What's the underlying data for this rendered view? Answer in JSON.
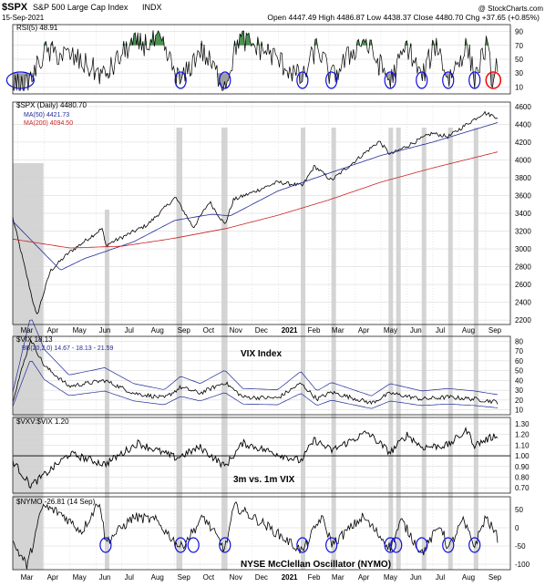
{
  "header": {
    "symbol": "$SPX",
    "name": "S&P 500 Large Cap Index",
    "exchange": "INDX",
    "date": "15-Sep-2021",
    "quote": "Open 4447.49  High 4486.87  Low 4438.37  Close 4480.70  Chg +37.65 (+0.85%)",
    "watermark": "@ StockCharts.com"
  },
  "colors": {
    "price": "#000000",
    "ma50": "#1f2a99",
    "ma200": "#cc2222",
    "overbought_fill": "#2e7d32",
    "oversold_fill": "#8d8d8d",
    "highlight_band": "#b0b0b0",
    "marker_blue": "#1010dd",
    "marker_red": "#ee1111",
    "grid": "#d0d0d0"
  },
  "xaxis": {
    "months": [
      "Mar",
      "Apr",
      "May",
      "Jun",
      "Jul",
      "Aug",
      "Sep",
      "Oct",
      "Nov",
      "Dec",
      "2021",
      "Feb",
      "Mar",
      "Apr",
      "May",
      "Jun",
      "Jul",
      "Aug",
      "Sep"
    ]
  },
  "panels": {
    "rsi": {
      "label": "RSI(5) 48.91",
      "ticks": [
        "90",
        "70",
        "50",
        "30",
        "10"
      ],
      "tick_values": [
        90,
        70,
        50,
        30,
        10
      ],
      "range": [
        0,
        100
      ]
    },
    "price": {
      "label": "$SPX (Daily) 4480.70",
      "ma50_label": "MA(50) 4421.73",
      "ma200_label": "MA(200) 4094.50",
      "ticks": [
        "4600",
        "4400",
        "4200",
        "4000",
        "3800",
        "3600",
        "3400",
        "3200",
        "3000",
        "2800",
        "2600",
        "2400",
        "2200"
      ],
      "tick_values": [
        4600,
        4400,
        4200,
        4000,
        3800,
        3600,
        3400,
        3200,
        3000,
        2800,
        2600,
        2400,
        2200
      ],
      "range": [
        2150,
        4650
      ]
    },
    "vix": {
      "label": "$VIX 18.13",
      "bb_label": "BB(20,2.0) 14.67 - 18.13 - 21.59",
      "title": "VIX Index",
      "ticks": [
        "80",
        "70",
        "60",
        "50",
        "40",
        "30",
        "20",
        "10"
      ],
      "tick_values": [
        80,
        70,
        60,
        50,
        40,
        30,
        20,
        10
      ],
      "range": [
        5,
        85
      ]
    },
    "ratio": {
      "label": "$VXV:$VIX 1.20",
      "title": "3m vs. 1m VIX",
      "ticks": [
        "1.30",
        "1.20",
        "1.10",
        "1.00",
        "0.90",
        "0.80",
        "0.70"
      ],
      "tick_values": [
        1.3,
        1.2,
        1.1,
        1.0,
        0.9,
        0.8,
        0.7
      ],
      "range": [
        0.65,
        1.36
      ]
    },
    "nymo": {
      "label": "$NYMO -26.81 (14 Sep)",
      "title": "NYSE McClellan Oscillator (NYMO)",
      "ticks": [
        "50",
        "0",
        "-50",
        "-100"
      ],
      "tick_values": [
        50,
        0,
        -50,
        -100
      ],
      "range": [
        -115,
        85
      ]
    }
  },
  "chart_data": {
    "type": "line",
    "title": "S&P 500 Large Cap Index",
    "x": [
      "2020-03",
      "2020-04",
      "2020-05",
      "2020-06",
      "2020-07",
      "2020-08",
      "2020-09",
      "2020-10",
      "2020-11",
      "2020-12",
      "2021-01",
      "2021-02",
      "2021-03",
      "2021-04",
      "2021-05",
      "2021-06",
      "2021-07",
      "2021-08",
      "2021-09"
    ],
    "series": [
      {
        "name": "$SPX (Daily)",
        "values": [
          3300,
          2500,
          2900,
          3100,
          3150,
          3350,
          3500,
          3400,
          3300,
          3650,
          3750,
          3900,
          3850,
          4050,
          4150,
          4200,
          4350,
          4400,
          4480
        ]
      },
      {
        "name": "MA(50)",
        "values": [
          3150,
          2900,
          2700,
          2950,
          3100,
          3200,
          3350,
          3380,
          3350,
          3500,
          3650,
          3800,
          3850,
          3950,
          4050,
          4150,
          4250,
          4330,
          4421
        ]
      },
      {
        "name": "MA(200)",
        "values": [
          3050,
          3020,
          3000,
          3000,
          3030,
          3080,
          3120,
          3150,
          3200,
          3250,
          3350,
          3450,
          3530,
          3630,
          3730,
          3830,
          3920,
          4000,
          4094
        ]
      },
      {
        "name": "$VIX",
        "values": [
          55,
          45,
          32,
          30,
          28,
          24,
          27,
          28,
          34,
          22,
          24,
          25,
          21,
          18,
          18,
          17,
          18,
          17,
          18.13
        ]
      },
      {
        "name": "$VXV:$VIX",
        "values": [
          0.78,
          0.85,
          0.95,
          1.05,
          1.1,
          1.15,
          1.05,
          1.05,
          0.95,
          1.15,
          1.15,
          1.05,
          1.15,
          1.2,
          1.15,
          1.2,
          1.15,
          1.2,
          1.2
        ]
      },
      {
        "name": "$NYMO",
        "values": [
          -80,
          40,
          30,
          20,
          10,
          20,
          -40,
          -30,
          -50,
          40,
          20,
          -30,
          -20,
          10,
          -20,
          -40,
          -20,
          10,
          -26.81
        ]
      },
      {
        "name": "RSI(5)",
        "values": [
          15,
          70,
          55,
          55,
          60,
          60,
          25,
          45,
          20,
          65,
          60,
          25,
          30,
          70,
          25,
          65,
          25,
          60,
          48.91
        ]
      }
    ],
    "highlight_periods": [
      {
        "from": "2020-02-24",
        "to": "2020-03-31"
      },
      {
        "from": "2020-06-11",
        "to": "2020-06-12"
      },
      {
        "from": "2020-09-03",
        "to": "2020-09-10"
      },
      {
        "from": "2020-10-26",
        "to": "2020-11-02"
      },
      {
        "from": "2021-01-27",
        "to": "2021-02-01"
      },
      {
        "from": "2021-03-04",
        "to": "2021-03-08"
      },
      {
        "from": "2021-05-10",
        "to": "2021-05-13"
      },
      {
        "from": "2021-05-19",
        "to": "2021-05-20"
      },
      {
        "from": "2021-06-18",
        "to": "2021-06-21"
      },
      {
        "from": "2021-07-19",
        "to": "2021-07-20"
      },
      {
        "from": "2021-08-18",
        "to": "2021-08-20"
      }
    ]
  }
}
